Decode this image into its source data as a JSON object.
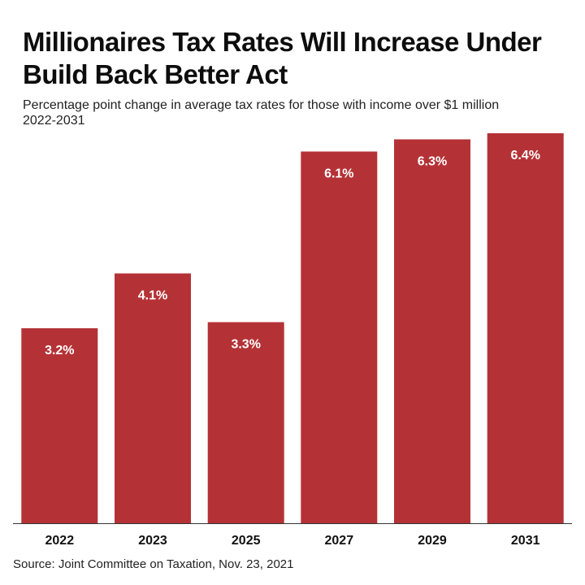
{
  "chart_data": {
    "type": "bar",
    "title": [
      "Millionaires Tax Rates Will Increase Under",
      "Build Back Better Act"
    ],
    "subtitle": [
      "Percentage point change in average tax rates for those with income over $1 million",
      "2022-2031"
    ],
    "categories": [
      "2022",
      "2023",
      "2025",
      "2027",
      "2029",
      "2031"
    ],
    "values": [
      3.2,
      4.1,
      3.3,
      6.1,
      6.3,
      6.4
    ],
    "data_labels": [
      "3.2%",
      "4.1%",
      "3.3%",
      "6.1%",
      "6.3%",
      "6.4%"
    ],
    "xlabel": "",
    "ylabel": "",
    "ylim": [
      0,
      6.4
    ],
    "grid": false,
    "legend": "none",
    "bar_color": "#b43236",
    "source": "Source: Joint Committee on Taxation, Nov. 23, 2021"
  }
}
